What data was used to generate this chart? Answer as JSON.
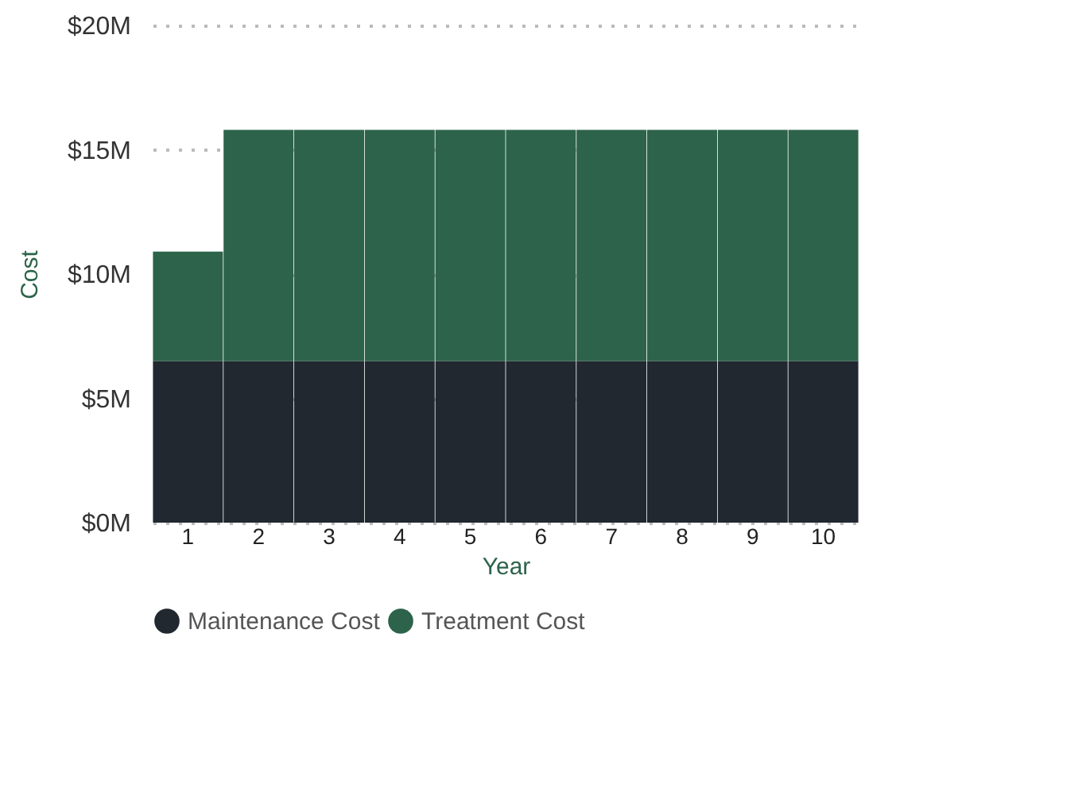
{
  "chart_data": {
    "type": "bar",
    "stacked": true,
    "xlabel": "Year",
    "ylabel": "Cost",
    "categories": [
      "1",
      "2",
      "3",
      "4",
      "5",
      "6",
      "7",
      "8",
      "9",
      "10"
    ],
    "series": [
      {
        "name": "Maintenance Cost",
        "color": "#212830",
        "values": [
          6.5,
          6.5,
          6.5,
          6.5,
          6.5,
          6.5,
          6.5,
          6.5,
          6.5,
          6.5
        ]
      },
      {
        "name": "Treatment Cost",
        "color": "#2d634a",
        "values": [
          4.4,
          9.3,
          9.3,
          9.3,
          9.3,
          9.3,
          9.3,
          9.3,
          9.3,
          9.3
        ]
      }
    ],
    "ylim": [
      0,
      20
    ],
    "yticks": [
      {
        "value": 0,
        "label": "$0M"
      },
      {
        "value": 5,
        "label": "$5M"
      },
      {
        "value": 10,
        "label": "$10M"
      },
      {
        "value": 15,
        "label": "$15M"
      },
      {
        "value": 20,
        "label": "$20M"
      }
    ],
    "grid": "y",
    "legend": "bottom"
  }
}
